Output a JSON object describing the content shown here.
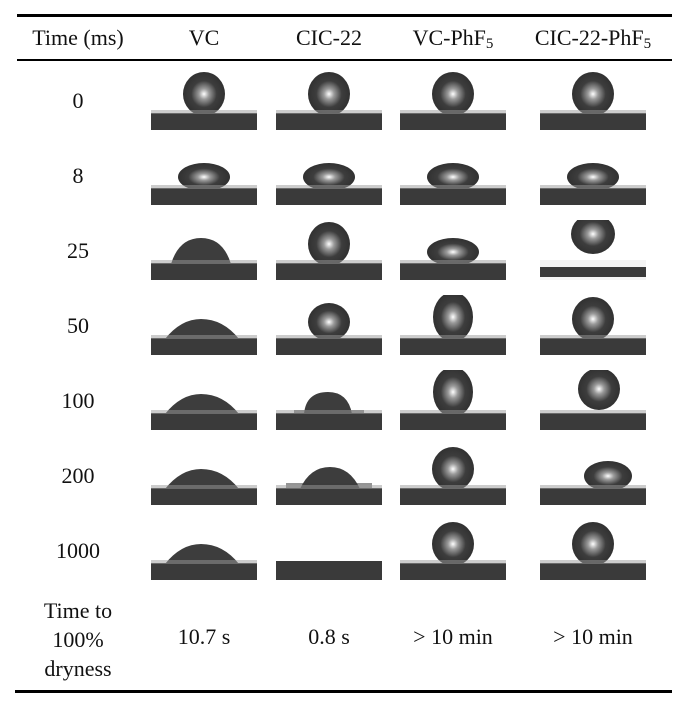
{
  "table": {
    "header": {
      "time_label": "Time (ms)",
      "columns": [
        {
          "base": "VC",
          "sub": ""
        },
        {
          "base": "CIC-22",
          "sub": ""
        },
        {
          "base": "VC-PhF",
          "sub": "5"
        },
        {
          "base": "CIC-22-PhF",
          "sub": "5"
        }
      ]
    },
    "rows": [
      {
        "time": "0",
        "shapes": [
          "sphere",
          "sphere",
          "sphere",
          "sphere"
        ]
      },
      {
        "time": "8",
        "shapes": [
          "flattened",
          "flattened",
          "flattened",
          "flattened"
        ]
      },
      {
        "time": "25",
        "shapes": [
          "spread",
          "sphere",
          "flattened",
          "rebound"
        ]
      },
      {
        "time": "50",
        "shapes": [
          "spread-wide",
          "sphere-low",
          "tall",
          "sphere"
        ]
      },
      {
        "time": "100",
        "shapes": [
          "spread-wide",
          "spread-rough",
          "tall",
          "rebound-low"
        ]
      },
      {
        "time": "200",
        "shapes": [
          "spread-wide",
          "spread-rough-wide",
          "sphere",
          "flattened-right"
        ]
      },
      {
        "time": "1000",
        "shapes": [
          "spread-wide",
          "dry",
          "sphere",
          "sphere"
        ]
      }
    ],
    "footer": {
      "label_lines": [
        "Time to",
        "100%",
        "dryness"
      ],
      "values": [
        "10.7 s",
        "0.8 s",
        "> 10 min",
        "> 10 min"
      ]
    }
  },
  "colors": {
    "rule": "#000000",
    "droplet": "#3d3d3d",
    "substrate": "#3a3a3a",
    "highlight": "#ffffff"
  }
}
